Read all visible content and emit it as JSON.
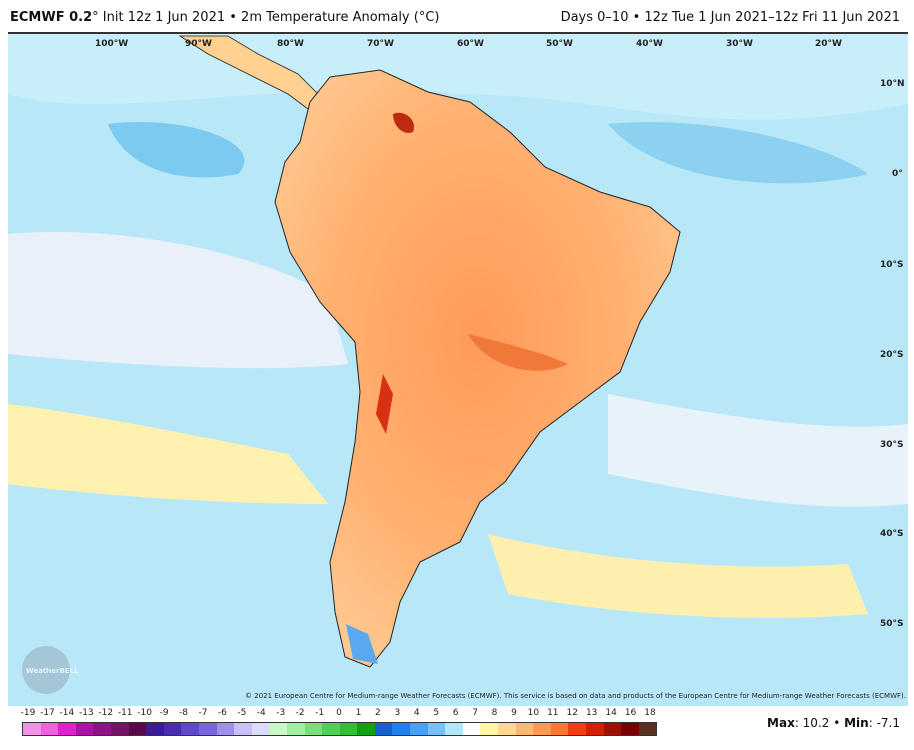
{
  "header": {
    "model": "ECMWF 0.2",
    "title_rest": "° Init 12z 1 Jun 2021 • 2m Temperature Anomaly (°C)",
    "valid": "Days 0–10 • 12z Tue 1 Jun 2021–12z Fri 11 Jun 2021"
  },
  "map": {
    "lon_labels": [
      "100°W",
      "90°W",
      "80°W",
      "70°W",
      "60°W",
      "50°W",
      "40°W",
      "30°W",
      "20°W"
    ],
    "lat_labels": [
      "10°N",
      "0°",
      "10°S",
      "20°S",
      "30°S",
      "40°S",
      "50°S"
    ],
    "logo_text": "WeatherBELL",
    "credit": "© 2021 European Centre for Medium-range Weather Forecasts (ECMWF). This service is based on data and products of the European Centre for Medium-range Weather Forecasts (ECMWF)."
  },
  "colorbar": {
    "labels": [
      "-19",
      "-17",
      "-14",
      "-13",
      "-12",
      "-11",
      "-10",
      "-9",
      "-8",
      "-7",
      "-6",
      "-5",
      "-4",
      "-3",
      "-2",
      "-1",
      "0",
      "1",
      "2",
      "3",
      "4",
      "5",
      "6",
      "7",
      "8",
      "9",
      "10",
      "11",
      "12",
      "13",
      "14",
      "16",
      "18"
    ],
    "colors": [
      "#f590e8",
      "#f060e0",
      "#e020d0",
      "#b010a8",
      "#901088",
      "#781068",
      "#5a0848",
      "#3a1a98",
      "#4a2ab0",
      "#6048c8",
      "#7a66dc",
      "#a090ee",
      "#c8c0f8",
      "#dcdcfa",
      "#c8f8c8",
      "#a0f0a0",
      "#78e078",
      "#50d050",
      "#30c030",
      "#10a010",
      "#1460d0",
      "#2080f0",
      "#48a0f8",
      "#78c0fa",
      "#b0e8fa",
      "#ffffff",
      "#fff8a0",
      "#ffd890",
      "#ffb870",
      "#ff9850",
      "#ff7830",
      "#f04010",
      "#d02000",
      "#a01000",
      "#780000",
      "#5a3020"
    ],
    "max_label": "Max",
    "max_value": "10.2",
    "min_label": "Min",
    "min_value": "-7.1"
  }
}
